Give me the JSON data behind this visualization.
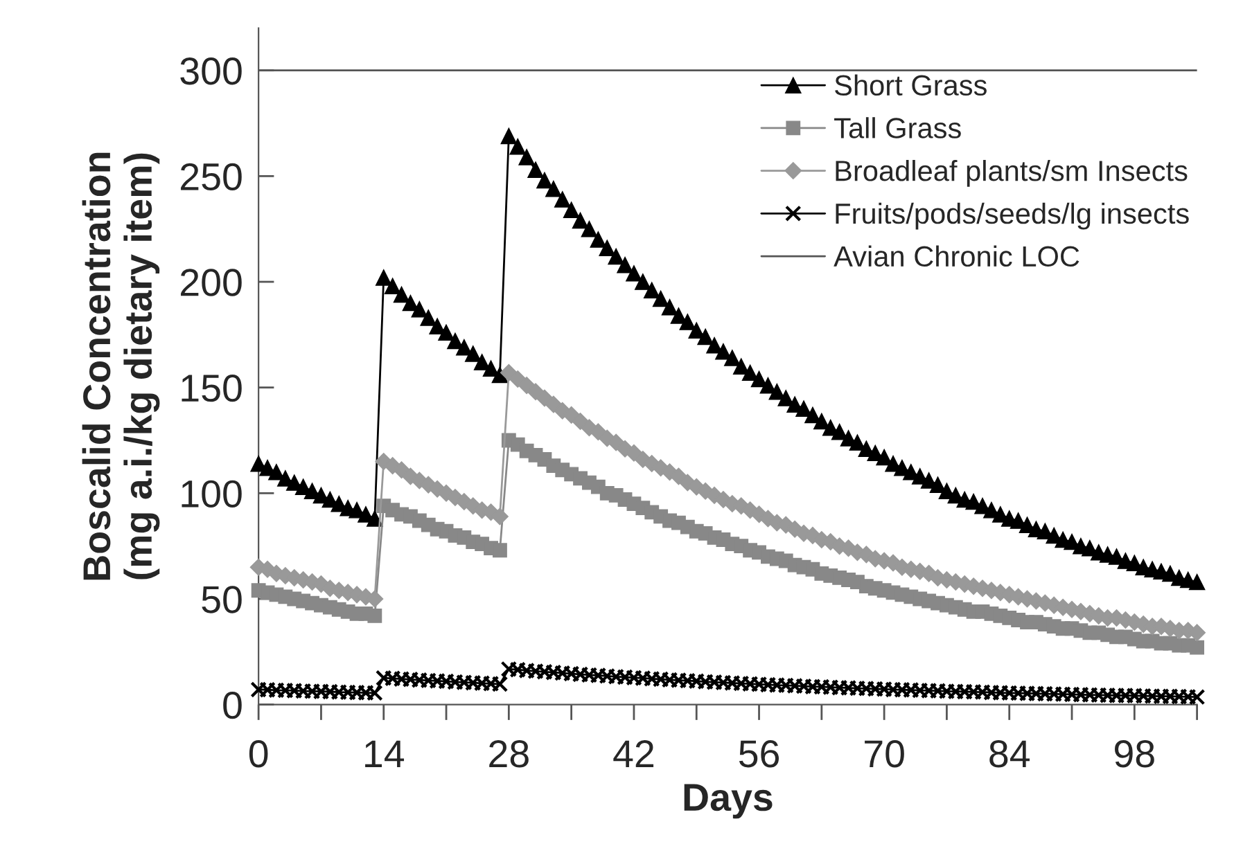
{
  "chart_data": {
    "type": "line",
    "xlabel": "Days",
    "ylabel": "Boscalid Concentration\n(mg a.i./kg dietary item)",
    "x": [
      0,
      1,
      2,
      3,
      4,
      5,
      6,
      7,
      8,
      9,
      10,
      11,
      12,
      13,
      14,
      15,
      16,
      17,
      18,
      19,
      20,
      21,
      22,
      23,
      24,
      25,
      26,
      27,
      28,
      29,
      30,
      31,
      32,
      33,
      34,
      35,
      36,
      37,
      38,
      39,
      40,
      41,
      42,
      43,
      44,
      45,
      46,
      47,
      48,
      49,
      50,
      51,
      52,
      53,
      54,
      55,
      56,
      57,
      58,
      59,
      60,
      61,
      62,
      63,
      64,
      65,
      66,
      67,
      68,
      69,
      70,
      71,
      72,
      73,
      74,
      75,
      76,
      77,
      78,
      79,
      80,
      81,
      82,
      83,
      84,
      85,
      86,
      87,
      88,
      89,
      90,
      91,
      92,
      93,
      94,
      95,
      96,
      97,
      98,
      99,
      100,
      101,
      102,
      103,
      104,
      105
    ],
    "xlim": [
      0,
      105
    ],
    "xticks": [
      0,
      {
        "value": 7,
        "label": null
      },
      14,
      {
        "value": 21,
        "label": null
      },
      28,
      {
        "value": 35,
        "label": null
      },
      42,
      {
        "value": 49,
        "label": null
      },
      56,
      {
        "value": 63,
        "label": null
      },
      70,
      {
        "value": 77,
        "label": null
      },
      84,
      {
        "value": 91,
        "label": null
      },
      98,
      {
        "value": 105,
        "label": null
      }
    ],
    "ylim": [
      0,
      320
    ],
    "yticks": [
      0,
      50,
      100,
      150,
      200,
      250,
      300
    ],
    "grid": false,
    "legend": "top right",
    "line_style": "solid",
    "series": [
      {
        "name": "Short Grass",
        "color": "#000000",
        "marker": "triangle",
        "values": [
          114,
          112,
          110,
          107,
          105,
          103,
          101,
          99,
          97,
          95,
          93,
          92,
          90,
          88,
          202,
          198,
          194,
          190,
          187,
          183,
          179,
          176,
          172,
          169,
          166,
          162,
          159,
          156,
          269,
          264,
          259,
          253,
          248,
          244,
          239,
          234,
          229,
          225,
          220,
          216,
          212,
          208,
          204,
          200,
          196,
          192,
          188,
          184,
          181,
          177,
          174,
          170,
          167,
          164,
          160,
          157,
          154,
          151,
          148,
          145,
          142,
          140,
          137,
          134,
          131,
          129,
          126,
          124,
          121,
          119,
          117,
          114,
          112,
          110,
          108,
          106,
          104,
          101,
          99,
          97,
          96,
          94,
          92,
          90,
          88,
          87,
          85,
          83,
          82,
          80,
          78,
          77,
          75,
          74,
          72,
          71,
          70,
          68,
          67,
          65,
          64,
          63,
          62,
          60,
          59,
          58
        ]
      },
      {
        "name": "Tall Grass",
        "color": "#888888",
        "marker": "square",
        "values": [
          54,
          53,
          52,
          51,
          50,
          49,
          48,
          47,
          46,
          45,
          44,
          43,
          43,
          42,
          94,
          92,
          90,
          89,
          87,
          85,
          83,
          82,
          80,
          79,
          77,
          76,
          74,
          73,
          125,
          123,
          120,
          118,
          116,
          113,
          111,
          109,
          107,
          105,
          103,
          100,
          99,
          97,
          95,
          93,
          91,
          89,
          87,
          86,
          84,
          82,
          81,
          79,
          78,
          76,
          75,
          73,
          72,
          70,
          69,
          68,
          66,
          65,
          64,
          62,
          61,
          60,
          59,
          58,
          56,
          55,
          54,
          53,
          52,
          51,
          50,
          49,
          48,
          47,
          46,
          45,
          44,
          44,
          43,
          42,
          41,
          40,
          39,
          39,
          38,
          37,
          36,
          36,
          35,
          34,
          34,
          33,
          32,
          32,
          31,
          30,
          30,
          29,
          29,
          28,
          28,
          27
        ]
      },
      {
        "name": "Broadleaf plants/sm Insects",
        "color": "#999999",
        "marker": "diamond",
        "values": [
          65,
          64,
          62,
          61,
          60,
          59,
          58,
          57,
          55,
          54,
          53,
          52,
          51,
          50,
          115,
          113,
          111,
          108,
          106,
          104,
          102,
          100,
          98,
          96,
          94,
          92,
          91,
          89,
          157,
          154,
          151,
          148,
          145,
          142,
          139,
          137,
          134,
          131,
          129,
          126,
          124,
          121,
          119,
          116,
          114,
          112,
          110,
          108,
          105,
          103,
          101,
          99,
          97,
          95,
          94,
          92,
          90,
          88,
          86,
          85,
          83,
          81,
          80,
          78,
          77,
          75,
          74,
          72,
          71,
          69,
          68,
          67,
          65,
          64,
          63,
          62,
          60,
          59,
          58,
          57,
          56,
          55,
          54,
          53,
          52,
          51,
          50,
          49,
          48,
          47,
          46,
          45,
          44,
          43,
          42,
          41,
          41,
          40,
          39,
          38,
          37,
          37,
          36,
          35,
          35,
          34
        ]
      },
      {
        "name": "Fruits/pods/seeds/lg insects",
        "color": "#000000",
        "marker": "cross",
        "values": [
          7.1,
          7.0,
          6.8,
          6.7,
          6.6,
          6.4,
          6.3,
          6.2,
          6.1,
          5.9,
          5.8,
          5.7,
          5.6,
          5.5,
          12.6,
          12.4,
          12.1,
          11.9,
          11.6,
          11.4,
          11.2,
          11.0,
          10.7,
          10.5,
          10.3,
          10.1,
          9.9,
          9.7,
          16.8,
          16.5,
          16.1,
          15.8,
          15.5,
          15.2,
          14.9,
          14.6,
          14.3,
          14.0,
          13.8,
          13.5,
          13.2,
          13.0,
          12.7,
          12.5,
          12.2,
          12.0,
          11.7,
          11.5,
          11.3,
          11.1,
          10.8,
          10.6,
          10.4,
          10.2,
          10.0,
          9.8,
          9.6,
          9.4,
          9.2,
          9.1,
          8.9,
          8.7,
          8.5,
          8.4,
          8.2,
          8.0,
          7.9,
          7.7,
          7.6,
          7.4,
          7.3,
          7.1,
          7.0,
          6.9,
          6.7,
          6.6,
          6.5,
          6.3,
          6.2,
          6.1,
          6.0,
          5.9,
          5.7,
          5.6,
          5.5,
          5.4,
          5.3,
          5.2,
          5.1,
          5.0,
          4.9,
          4.8,
          4.7,
          4.6,
          4.5,
          4.4,
          4.3,
          4.3,
          4.2,
          4.1,
          4.0,
          3.9,
          3.9,
          3.8,
          3.7,
          3.6
        ]
      }
    ],
    "ref_lines": [
      {
        "axis": "y",
        "value": 300,
        "label": "Avian Chronic LOC",
        "color": "#555555",
        "line_style": "solid"
      }
    ]
  }
}
